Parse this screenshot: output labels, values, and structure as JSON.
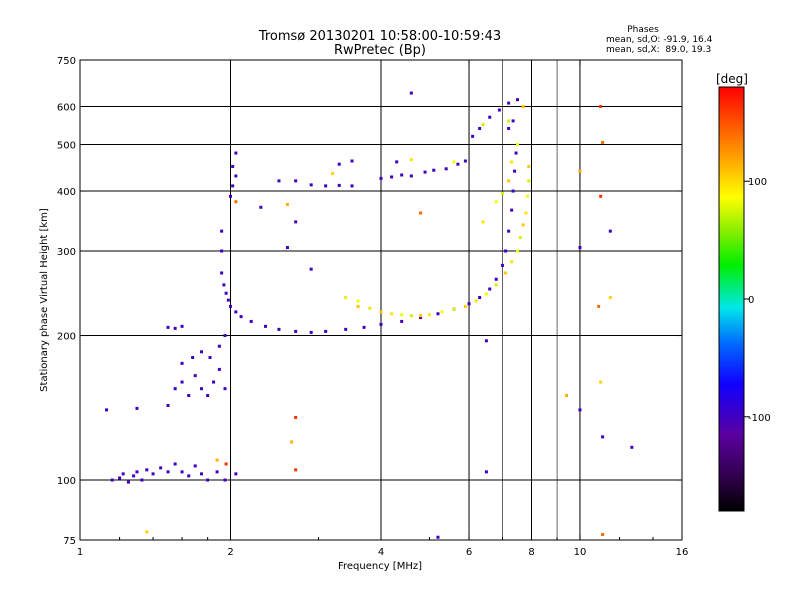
{
  "chart_data": {
    "type": "scatter",
    "title": "Tromsø 20130201 10:58:00-10:59:43",
    "subtitle": "RwPretec (Bp)",
    "xlabel": "Frequency [MHz]",
    "ylabel": "Stationary phase Virtual Height [km]",
    "x_scale": "log",
    "y_scale": "log",
    "xlim": [
      1,
      16
    ],
    "ylim": [
      75,
      750
    ],
    "xticks": [
      1,
      2,
      4,
      6,
      8,
      10,
      16
    ],
    "yticks": [
      75,
      100,
      200,
      300,
      400,
      500,
      600,
      750
    ],
    "grid_x": [
      2,
      4,
      6,
      8,
      10
    ],
    "grid_y": [
      100,
      200,
      300,
      400,
      500,
      600
    ],
    "minor_grid_x": [
      7,
      9
    ],
    "phase_stats": {
      "header": "Phases",
      "line_o": "mean, sd,O: -91.9, 16.4",
      "line_x": "mean, sd,X:  89.0, 19.3"
    },
    "colorbar": {
      "label": "[deg]",
      "range": [
        -180,
        180
      ],
      "ticks": [
        -100,
        0,
        100
      ],
      "colormap": "rainbow (black-purple-blue-cyan-green-yellow-red)"
    },
    "series": [
      {
        "mode": "O",
        "phase_deg": -100,
        "points": [
          [
            1.16,
            100
          ],
          [
            1.2,
            101
          ],
          [
            1.22,
            103
          ],
          [
            1.25,
            99
          ],
          [
            1.28,
            102
          ],
          [
            1.3,
            104
          ],
          [
            1.33,
            100
          ],
          [
            1.36,
            105
          ],
          [
            1.4,
            103
          ],
          [
            1.45,
            106
          ],
          [
            1.5,
            104
          ],
          [
            1.55,
            108
          ],
          [
            1.6,
            104
          ],
          [
            1.65,
            102
          ],
          [
            1.7,
            107
          ],
          [
            1.75,
            103
          ],
          [
            1.8,
            100
          ],
          [
            1.88,
            104
          ],
          [
            1.95,
            100
          ],
          [
            2.05,
            103
          ],
          [
            1.13,
            140
          ],
          [
            1.3,
            141
          ],
          [
            1.5,
            143
          ],
          [
            1.55,
            155
          ],
          [
            1.6,
            160
          ],
          [
            1.65,
            150
          ],
          [
            1.7,
            165
          ],
          [
            1.75,
            155
          ],
          [
            1.8,
            150
          ],
          [
            1.85,
            160
          ],
          [
            1.9,
            170
          ],
          [
            1.95,
            155
          ],
          [
            1.6,
            175
          ],
          [
            1.68,
            180
          ],
          [
            1.75,
            185
          ],
          [
            1.82,
            180
          ],
          [
            1.9,
            190
          ],
          [
            1.95,
            200
          ],
          [
            1.5,
            208
          ],
          [
            1.55,
            207
          ],
          [
            1.6,
            209
          ],
          [
            1.92,
            270
          ],
          [
            1.94,
            255
          ],
          [
            1.96,
            245
          ],
          [
            1.98,
            237
          ],
          [
            2.0,
            230
          ],
          [
            2.05,
            224
          ],
          [
            2.1,
            219
          ],
          [
            2.2,
            214
          ],
          [
            2.35,
            209
          ],
          [
            2.5,
            206
          ],
          [
            2.7,
            204
          ],
          [
            2.9,
            203
          ],
          [
            3.1,
            204
          ],
          [
            3.4,
            206
          ],
          [
            3.7,
            208
          ],
          [
            4.0,
            211
          ],
          [
            4.4,
            214
          ],
          [
            4.8,
            218
          ],
          [
            5.2,
            222
          ],
          [
            5.6,
            227
          ],
          [
            6.0,
            233
          ],
          [
            6.3,
            240
          ],
          [
            6.6,
            250
          ],
          [
            6.8,
            262
          ],
          [
            7.0,
            280
          ],
          [
            7.1,
            300
          ],
          [
            7.2,
            330
          ],
          [
            7.3,
            365
          ],
          [
            7.35,
            400
          ],
          [
            7.4,
            440
          ],
          [
            7.45,
            480
          ],
          [
            2.0,
            390
          ],
          [
            2.02,
            410
          ],
          [
            2.05,
            430
          ],
          [
            2.02,
            450
          ],
          [
            2.05,
            480
          ],
          [
            2.7,
            420
          ],
          [
            2.9,
            412
          ],
          [
            3.1,
            410
          ],
          [
            3.3,
            411
          ],
          [
            3.5,
            410
          ],
          [
            4.0,
            425
          ],
          [
            4.2,
            428
          ],
          [
            4.4,
            432
          ],
          [
            4.6,
            430
          ],
          [
            4.9,
            438
          ],
          [
            5.1,
            442
          ],
          [
            5.4,
            445
          ],
          [
            5.7,
            455
          ],
          [
            5.9,
            462
          ],
          [
            3.3,
            455
          ],
          [
            3.5,
            462
          ],
          [
            4.3,
            460
          ],
          [
            6.1,
            520
          ],
          [
            6.3,
            540
          ],
          [
            6.6,
            570
          ],
          [
            6.9,
            590
          ],
          [
            7.2,
            610
          ],
          [
            7.5,
            620
          ],
          [
            7.2,
            540
          ],
          [
            7.35,
            560
          ],
          [
            1.92,
            300
          ],
          [
            1.92,
            330
          ],
          [
            2.3,
            370
          ],
          [
            2.5,
            420
          ],
          [
            2.6,
            305
          ],
          [
            2.7,
            345
          ],
          [
            2.9,
            275
          ],
          [
            4.6,
            640
          ],
          [
            6.5,
            104
          ],
          [
            6.5,
            195
          ],
          [
            5.2,
            76
          ],
          [
            10.0,
            305
          ],
          [
            10.0,
            140
          ],
          [
            11.1,
            123
          ],
          [
            12.7,
            117
          ],
          [
            11.5,
            330
          ]
        ]
      },
      {
        "mode": "X",
        "phase_deg": 89,
        "points": [
          [
            3.4,
            240
          ],
          [
            3.6,
            236
          ],
          [
            3.8,
            228
          ],
          [
            4.0,
            224
          ],
          [
            4.2,
            222
          ],
          [
            4.4,
            221
          ],
          [
            4.6,
            220
          ],
          [
            4.8,
            220
          ],
          [
            5.0,
            221
          ],
          [
            5.3,
            224
          ],
          [
            5.6,
            227
          ],
          [
            5.9,
            230
          ],
          [
            6.2,
            236
          ],
          [
            6.5,
            244
          ],
          [
            6.8,
            255
          ],
          [
            7.1,
            270
          ],
          [
            7.3,
            285
          ],
          [
            7.5,
            300
          ],
          [
            7.6,
            320
          ],
          [
            7.7,
            340
          ],
          [
            7.8,
            360
          ],
          [
            7.85,
            390
          ],
          [
            7.9,
            420
          ],
          [
            7.9,
            450
          ],
          [
            6.4,
            345
          ],
          [
            6.8,
            380
          ],
          [
            7.0,
            395
          ],
          [
            7.2,
            420
          ],
          [
            7.3,
            460
          ],
          [
            7.5,
            500
          ],
          [
            7.2,
            560
          ],
          [
            7.7,
            600
          ],
          [
            4.6,
            465
          ],
          [
            5.6,
            460
          ],
          [
            6.4,
            550
          ],
          [
            3.6,
            230
          ]
        ]
      },
      {
        "mode": "scattered",
        "phase_deg": 150,
        "points": [
          [
            2.05,
            380
          ],
          [
            2.6,
            375
          ],
          [
            2.7,
            135
          ],
          [
            3.2,
            435
          ],
          [
            4.8,
            360
          ],
          [
            10.0,
            440
          ],
          [
            11.0,
            600
          ],
          [
            11.0,
            160
          ],
          [
            11.1,
            505
          ],
          [
            1.88,
            110
          ],
          [
            1.96,
            108
          ],
          [
            11.5,
            240
          ],
          [
            10.9,
            230
          ],
          [
            2.65,
            120
          ],
          [
            2.7,
            105
          ],
          [
            1.36,
            78
          ],
          [
            11.1,
            77
          ],
          [
            9.4,
            150
          ],
          [
            11.0,
            390
          ]
        ]
      }
    ]
  }
}
